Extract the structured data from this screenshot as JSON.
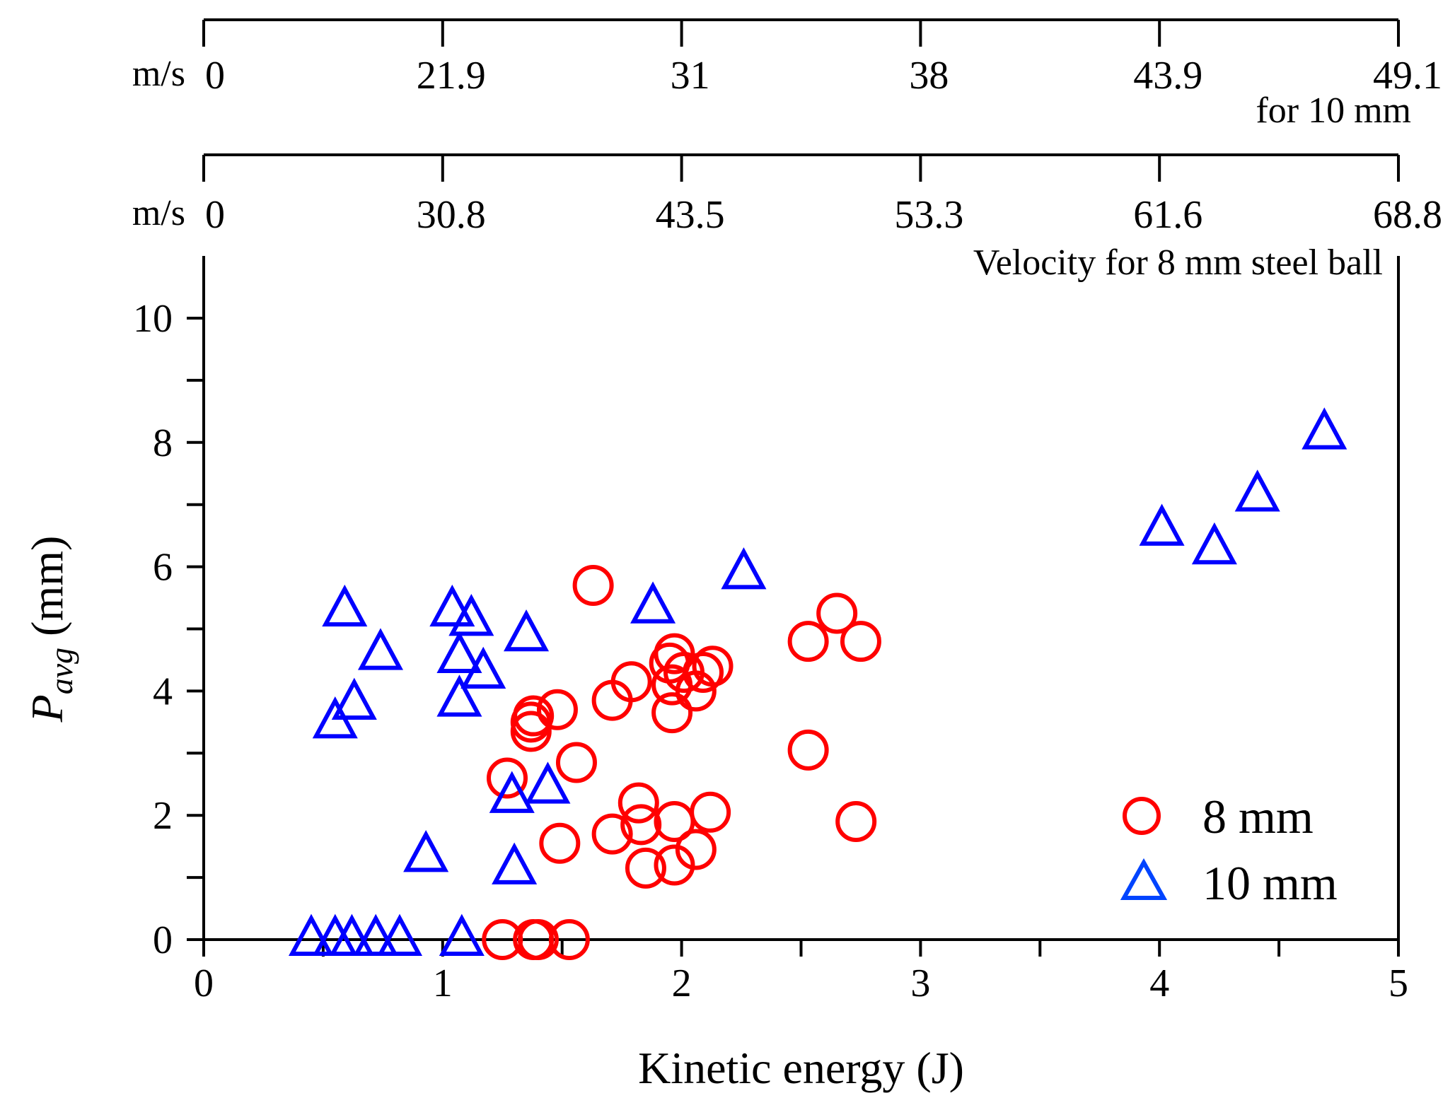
{
  "chart_data": {
    "type": "scatter",
    "xlabel": "Kinetic energy (J)",
    "ylabel_main": "P",
    "ylabel_sub": "avg",
    "ylabel_unit": " (mm)",
    "xlim": [
      0,
      5
    ],
    "ylim": [
      0,
      11
    ],
    "x_ticks": [
      "0",
      "1",
      "2",
      "3",
      "4",
      "5"
    ],
    "y_ticks": [
      "0",
      "2",
      "4",
      "6",
      "8",
      "10"
    ],
    "top_axis_10mm": {
      "unit": "m/s",
      "tick_labels": [
        "0",
        "21.9",
        "31",
        "38",
        "43.9",
        "49.1"
      ],
      "caption": "for 10 mm"
    },
    "top_axis_8mm": {
      "unit": "m/s",
      "tick_labels": [
        "0",
        "30.8",
        "43.5",
        "53.3",
        "61.6",
        "68.8"
      ],
      "caption": "Velocity for 8 mm steel ball"
    },
    "legend_position": "bottom-right",
    "series": [
      {
        "name": "8 mm",
        "marker": "circle",
        "color": "#ff0000",
        "points": [
          [
            1.25,
            0.0
          ],
          [
            1.38,
            0.0
          ],
          [
            1.4,
            0.0
          ],
          [
            1.53,
            0.0
          ],
          [
            1.27,
            2.6
          ],
          [
            1.37,
            3.5
          ],
          [
            1.38,
            3.6
          ],
          [
            1.37,
            3.35
          ],
          [
            1.48,
            3.7
          ],
          [
            1.56,
            2.85
          ],
          [
            1.49,
            1.55
          ],
          [
            1.63,
            5.7
          ],
          [
            1.71,
            3.85
          ],
          [
            1.79,
            4.15
          ],
          [
            1.82,
            2.2
          ],
          [
            1.83,
            1.85
          ],
          [
            1.71,
            1.7
          ],
          [
            1.85,
            1.15
          ],
          [
            1.95,
            4.45
          ],
          [
            1.97,
            4.6
          ],
          [
            1.96,
            4.1
          ],
          [
            1.96,
            3.65
          ],
          [
            1.97,
            1.9
          ],
          [
            1.97,
            1.2
          ],
          [
            2.01,
            4.3
          ],
          [
            2.06,
            4.0
          ],
          [
            2.09,
            4.3
          ],
          [
            2.13,
            4.4
          ],
          [
            2.12,
            2.05
          ],
          [
            2.06,
            1.45
          ],
          [
            2.53,
            4.8
          ],
          [
            2.53,
            3.05
          ],
          [
            2.65,
            5.25
          ],
          [
            2.75,
            4.8
          ],
          [
            2.73,
            1.9
          ]
        ]
      },
      {
        "name": "10 mm",
        "marker": "triangle",
        "color": "#0000ff",
        "points": [
          [
            0.45,
            0.0
          ],
          [
            0.55,
            0.0
          ],
          [
            0.62,
            0.0
          ],
          [
            0.72,
            0.0
          ],
          [
            0.82,
            0.0
          ],
          [
            1.08,
            0.0
          ],
          [
            0.55,
            3.5
          ],
          [
            0.63,
            3.8
          ],
          [
            0.59,
            5.3
          ],
          [
            0.74,
            4.6
          ],
          [
            0.93,
            1.35
          ],
          [
            1.04,
            5.3
          ],
          [
            1.07,
            4.55
          ],
          [
            1.07,
            3.85
          ],
          [
            1.12,
            5.15
          ],
          [
            1.17,
            4.3
          ],
          [
            1.29,
            2.3
          ],
          [
            1.3,
            1.15
          ],
          [
            1.35,
            4.9
          ],
          [
            1.44,
            2.45
          ],
          [
            1.88,
            5.35
          ],
          [
            2.26,
            5.9
          ],
          [
            4.01,
            6.6
          ],
          [
            4.23,
            6.3
          ],
          [
            4.41,
            7.15
          ],
          [
            4.69,
            8.15
          ]
        ]
      }
    ]
  }
}
